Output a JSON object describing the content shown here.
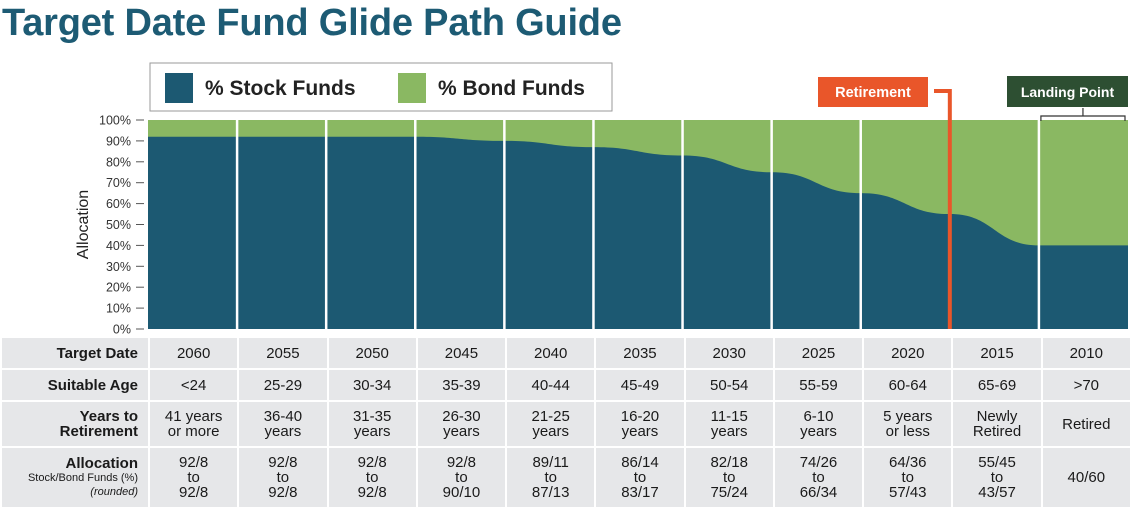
{
  "title": "Target Date Fund Glide Path Guide",
  "chart_data": {
    "type": "area",
    "ylabel": "Allocation",
    "ylim": [
      0,
      100
    ],
    "yticks": [
      "0%",
      "10%",
      "20%",
      "30%",
      "40%",
      "50%",
      "60%",
      "70%",
      "80%",
      "90%",
      "100%"
    ],
    "categories": [
      "2060",
      "2055",
      "2050",
      "2045",
      "2040",
      "2035",
      "2030",
      "2025",
      "2020",
      "2015",
      "2010"
    ],
    "series": [
      {
        "name": "% Stock Funds",
        "color": "#1c5972",
        "x": [
          0,
          1,
          2,
          3,
          4,
          5,
          6,
          7,
          8,
          9,
          10,
          10,
          11
        ],
        "values": [
          92,
          92,
          92,
          92,
          90,
          87,
          83,
          75,
          65,
          55,
          40,
          40,
          40
        ]
      },
      {
        "name": "% Bond Funds",
        "color": "#8ab862",
        "x": [
          0,
          11
        ],
        "values": [
          100,
          100
        ]
      }
    ],
    "legend": [
      "% Stock Funds",
      "% Bond Funds"
    ],
    "legend_position": "top-left",
    "annotations": [
      {
        "label": "Retirement",
        "at_x": 9,
        "color": "#e9562a"
      },
      {
        "label": "Landing Point",
        "range_x": [
          10,
          11
        ],
        "color": "#2d4f32"
      }
    ]
  },
  "table": {
    "rows": [
      {
        "label": "Target Date",
        "values": [
          "2060",
          "2055",
          "2050",
          "2045",
          "2040",
          "2035",
          "2030",
          "2025",
          "2020",
          "2015",
          "2010"
        ]
      },
      {
        "label": "Suitable Age",
        "values": [
          "<24",
          "25-29",
          "30-34",
          "35-39",
          "40-44",
          "45-49",
          "50-54",
          "55-59",
          "60-64",
          "65-69",
          ">70"
        ]
      },
      {
        "label_lines": [
          "Years to",
          "Retirement"
        ],
        "values": [
          [
            "41 years",
            "or more"
          ],
          [
            "36-40",
            "years"
          ],
          [
            "31-35",
            "years"
          ],
          [
            "26-30",
            "years"
          ],
          [
            "21-25",
            "years"
          ],
          [
            "16-20",
            "years"
          ],
          [
            "11-15",
            "years"
          ],
          [
            "6-10",
            "years"
          ],
          [
            "5 years",
            "or less"
          ],
          [
            "Newly",
            "Retired"
          ],
          [
            "Retired"
          ]
        ]
      },
      {
        "label": "Allocation",
        "sublabel": "Stock/Bond Funds (%)",
        "sublabel2": "(rounded)",
        "values": [
          [
            "92/8",
            "to",
            "92/8"
          ],
          [
            "92/8",
            "to",
            "92/8"
          ],
          [
            "92/8",
            "to",
            "92/8"
          ],
          [
            "92/8",
            "to",
            "90/10"
          ],
          [
            "89/11",
            "to",
            "87/13"
          ],
          [
            "86/14",
            "to",
            "83/17"
          ],
          [
            "82/18",
            "to",
            "75/24"
          ],
          [
            "74/26",
            "to",
            "66/34"
          ],
          [
            "64/36",
            "to",
            "57/43"
          ],
          [
            "55/45",
            "to",
            "43/57"
          ],
          [
            "40/60"
          ]
        ]
      }
    ]
  }
}
